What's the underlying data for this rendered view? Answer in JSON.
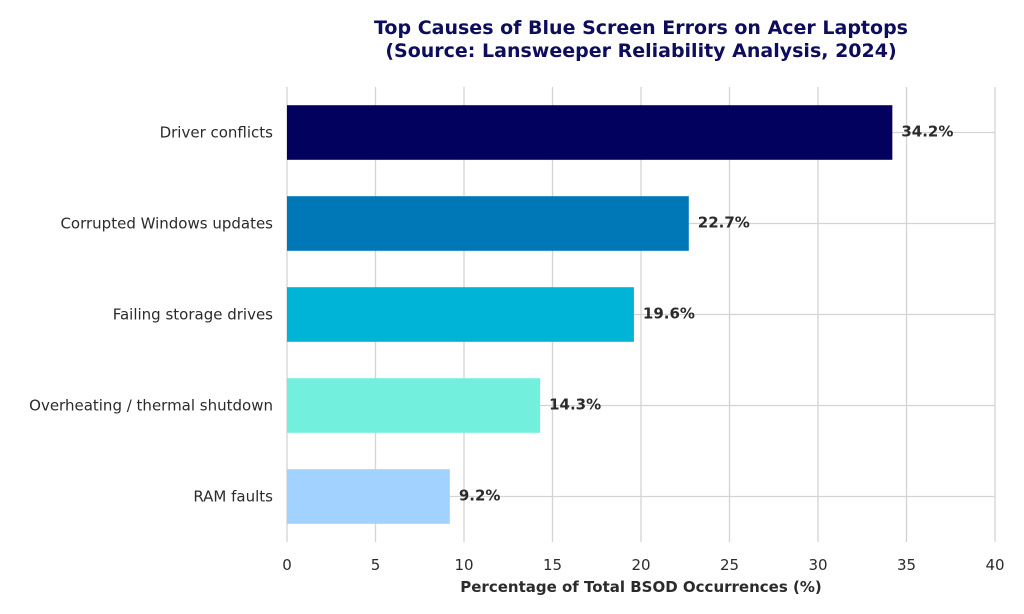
{
  "chart_data": {
    "type": "bar",
    "orientation": "horizontal",
    "title_lines": [
      "Top Causes of Blue Screen Errors on Acer Laptops",
      "(Source: Lansweeper Reliability Analysis, 2024)"
    ],
    "categories": [
      "Driver conflicts",
      "Corrupted Windows updates",
      "Failing storage drives",
      "Overheating / thermal shutdown",
      "RAM faults"
    ],
    "values": [
      34.2,
      22.7,
      19.6,
      14.3,
      9.2
    ],
    "value_labels": [
      "34.2%",
      "22.7%",
      "19.6%",
      "14.3%",
      "9.2%"
    ],
    "colors": [
      "#02025e",
      "#0077b6",
      "#00b4d8",
      "#72efdd",
      "#a2d2ff"
    ],
    "xlabel": "Percentage of Total BSOD Occurrences (%)",
    "ylabel": "",
    "xlim": [
      0,
      40
    ],
    "xticks": [
      0,
      5,
      10,
      15,
      20,
      25,
      30,
      35,
      40
    ],
    "grid": true,
    "title_color": "#0d0d5c"
  }
}
